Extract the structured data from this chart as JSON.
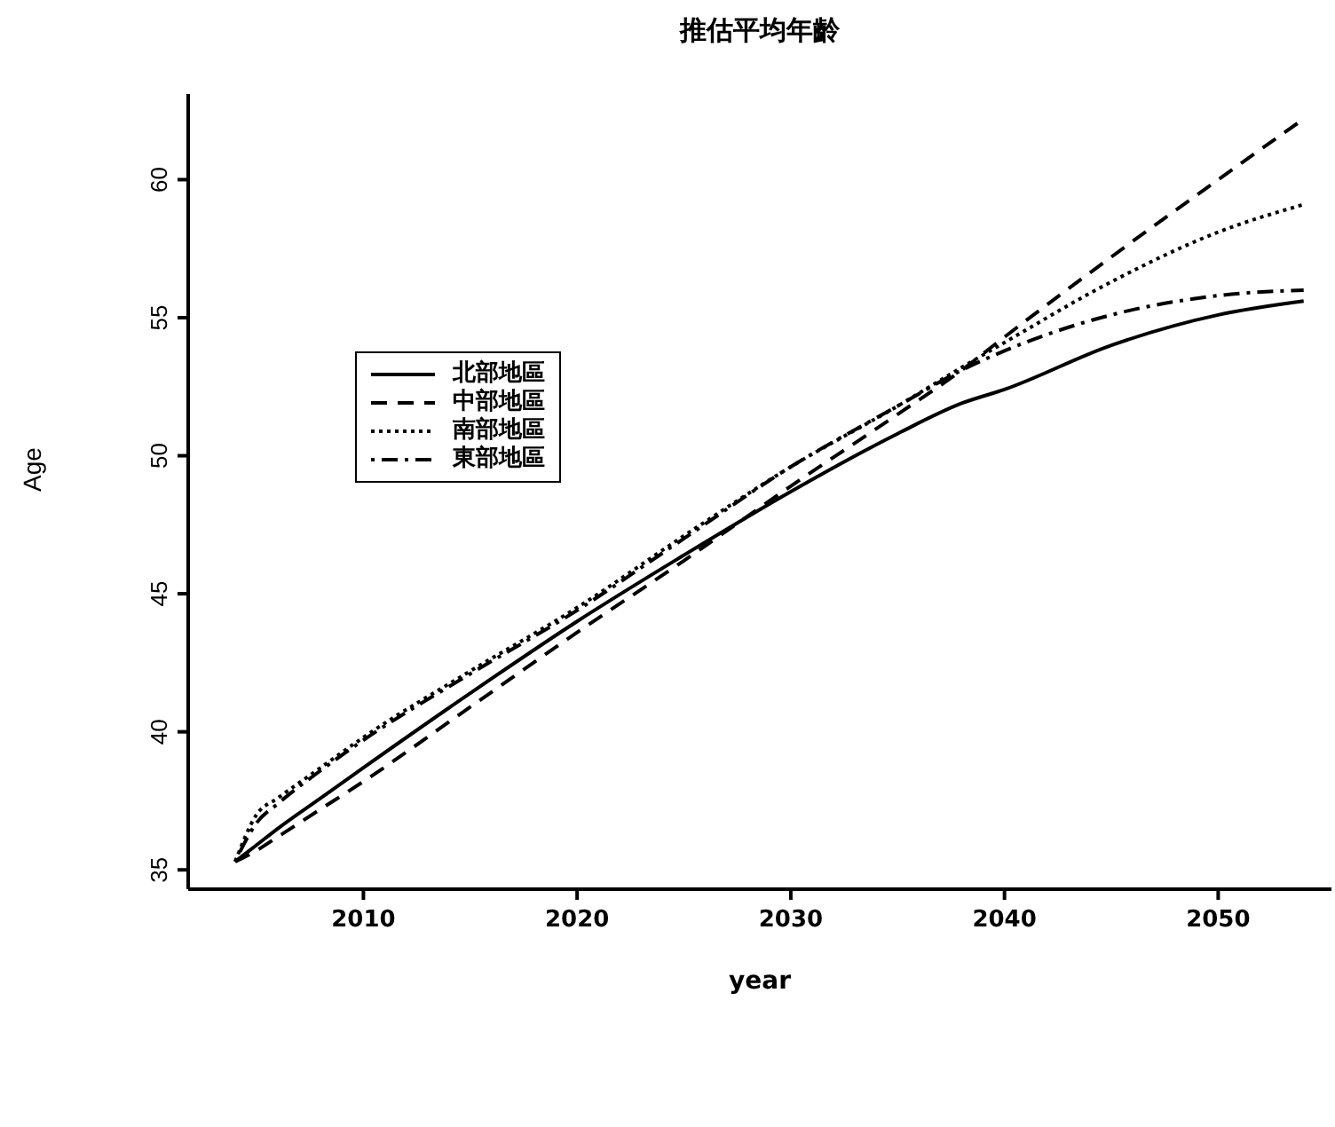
{
  "chart_data": {
    "type": "line",
    "title": "推估平均年齡",
    "xlabel": "year",
    "ylabel": "Age",
    "x": [
      2004,
      2005,
      2006,
      2008,
      2010,
      2015,
      2020,
      2025,
      2030,
      2035,
      2038,
      2040,
      2045,
      2050,
      2054
    ],
    "series": [
      {
        "name": "北部地區",
        "color": "#000000",
        "line_style": "solid",
        "values": [
          35.3,
          35.9,
          36.5,
          37.6,
          38.7,
          41.4,
          44.0,
          46.4,
          48.7,
          50.8,
          51.9,
          52.4,
          54.0,
          55.1,
          55.6
        ]
      },
      {
        "name": "中部地區",
        "color": "#000000",
        "line_style": "dashed",
        "values": [
          35.3,
          35.7,
          36.2,
          37.2,
          38.2,
          40.9,
          43.6,
          46.2,
          48.9,
          51.5,
          53.1,
          54.3,
          57.2,
          60.0,
          62.2
        ]
      },
      {
        "name": "南部地區",
        "color": "#000000",
        "line_style": "dotted",
        "values": [
          35.3,
          37.0,
          37.6,
          38.7,
          39.8,
          42.2,
          44.5,
          47.1,
          49.6,
          51.8,
          53.2,
          54.1,
          56.3,
          58.1,
          59.1
        ]
      },
      {
        "name": "東部地區",
        "color": "#000000",
        "line_style": "dashdot",
        "values": [
          35.3,
          36.7,
          37.4,
          38.6,
          39.7,
          42.1,
          44.4,
          47.0,
          49.6,
          51.8,
          53.1,
          53.8,
          55.1,
          55.8,
          56.0
        ]
      }
    ],
    "xlim": [
      2001.8,
      2055.3
    ],
    "xticks": [
      2010,
      2020,
      2030,
      2040,
      2050
    ],
    "ylim": [
      34.3,
      63.1
    ],
    "yticks": [
      35,
      40,
      45,
      50,
      55,
      60
    ],
    "grid": false,
    "legend": "top left",
    "marker": "none"
  }
}
